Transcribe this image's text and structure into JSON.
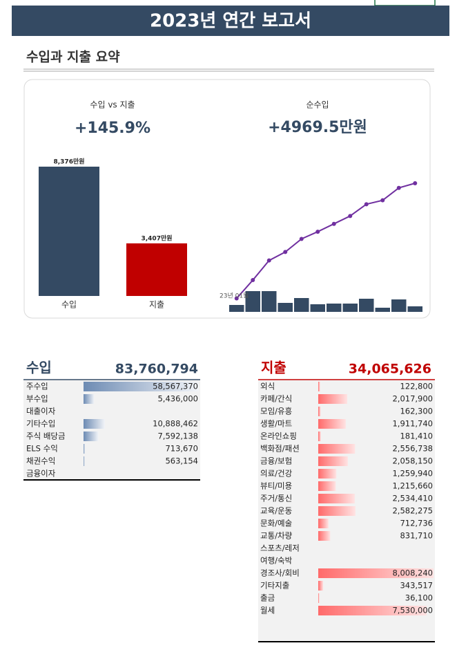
{
  "header": {
    "title": "2023년 연간 보고서"
  },
  "summary": {
    "title": "수입과 지출 요약",
    "ratio_label": "수입 vs 지출",
    "ratio": "+145.9%",
    "net_label": "순수입",
    "net": "+4969.5만원"
  },
  "chart_data": [
    {
      "type": "bar",
      "categories": [
        "수입",
        "지출"
      ],
      "values": [
        8376,
        3407
      ],
      "value_labels": [
        "8,376만원",
        "3,407만원"
      ],
      "colors": [
        "#344a63",
        "#c00000"
      ]
    },
    {
      "type": "combo",
      "categories": [
        "23년 01월",
        null,
        null,
        null,
        null,
        null,
        null,
        null,
        null,
        null,
        null,
        null
      ],
      "series": [
        {
          "type": "bar",
          "color": "#344a63",
          "values": [
            300,
            900,
            900,
            390,
            600,
            330,
            360,
            360,
            570,
            180,
            540,
            240
          ]
        },
        {
          "type": "line",
          "color": "#7030a0",
          "values": [
            267,
            1015,
            1816,
            2163,
            2698,
            2991,
            3312,
            3633,
            4113,
            4273,
            4780,
            4969.5
          ]
        }
      ]
    }
  ],
  "income": {
    "title": "수입",
    "total": "83,760,794",
    "rows": [
      {
        "name": "주수입",
        "amount": 58567370,
        "label": "58,567,370"
      },
      {
        "name": "부수입",
        "amount": 5436000,
        "label": "5,436,000"
      },
      {
        "name": "대출이자",
        "amount": null,
        "label": null
      },
      {
        "name": "기타수입",
        "amount": 10888462,
        "label": "10,888,462"
      },
      {
        "name": "주식 배당금",
        "amount": 7592138,
        "label": "7,592,138"
      },
      {
        "name": " ELS 수익",
        "amount": 713670,
        "label": "713,670"
      },
      {
        "name": "채권수익",
        "amount": 563154,
        "label": "563,154"
      },
      {
        "name": "금융이자",
        "amount": null,
        "label": null
      }
    ]
  },
  "expense": {
    "title": "지출",
    "total": "34,065,626",
    "rows": [
      {
        "name": "외식",
        "amount": 122800,
        "label": "122,800"
      },
      {
        "name": "카페/간식",
        "amount": 2017900,
        "label": "2,017,900"
      },
      {
        "name": "모임/유흥",
        "amount": 162300,
        "label": "162,300"
      },
      {
        "name": "생활/마트",
        "amount": 1911740,
        "label": "1,911,740"
      },
      {
        "name": "온라인쇼핑",
        "amount": 181410,
        "label": "181,410"
      },
      {
        "name": "백화점/패션",
        "amount": 2556738,
        "label": "2,556,738"
      },
      {
        "name": "금융/보험",
        "amount": 2058150,
        "label": "2,058,150"
      },
      {
        "name": "의료/건강",
        "amount": 1259940,
        "label": "1,259,940"
      },
      {
        "name": "뷰티/미용",
        "amount": 1215660,
        "label": "1,215,660"
      },
      {
        "name": "주거/통신",
        "amount": 2534410,
        "label": "2,534,410"
      },
      {
        "name": "교육/운동",
        "amount": 2582275,
        "label": "2,582,275"
      },
      {
        "name": "문화/예술",
        "amount": 712736,
        "label": "712,736"
      },
      {
        "name": "교통/차량",
        "amount": 831710,
        "label": "831,710"
      },
      {
        "name": "스포츠/레저",
        "amount": null,
        "label": null
      },
      {
        "name": "여행/숙박",
        "amount": null,
        "label": null
      },
      {
        "name": "경조사/회비",
        "amount": 8008240,
        "label": "8,008,240"
      },
      {
        "name": "기타지출",
        "amount": 343517,
        "label": "343,517"
      },
      {
        "name": "출금",
        "amount": 36100,
        "label": "36,100"
      },
      {
        "name": "월세",
        "amount": 7530000,
        "label": "7,530,000"
      }
    ]
  }
}
